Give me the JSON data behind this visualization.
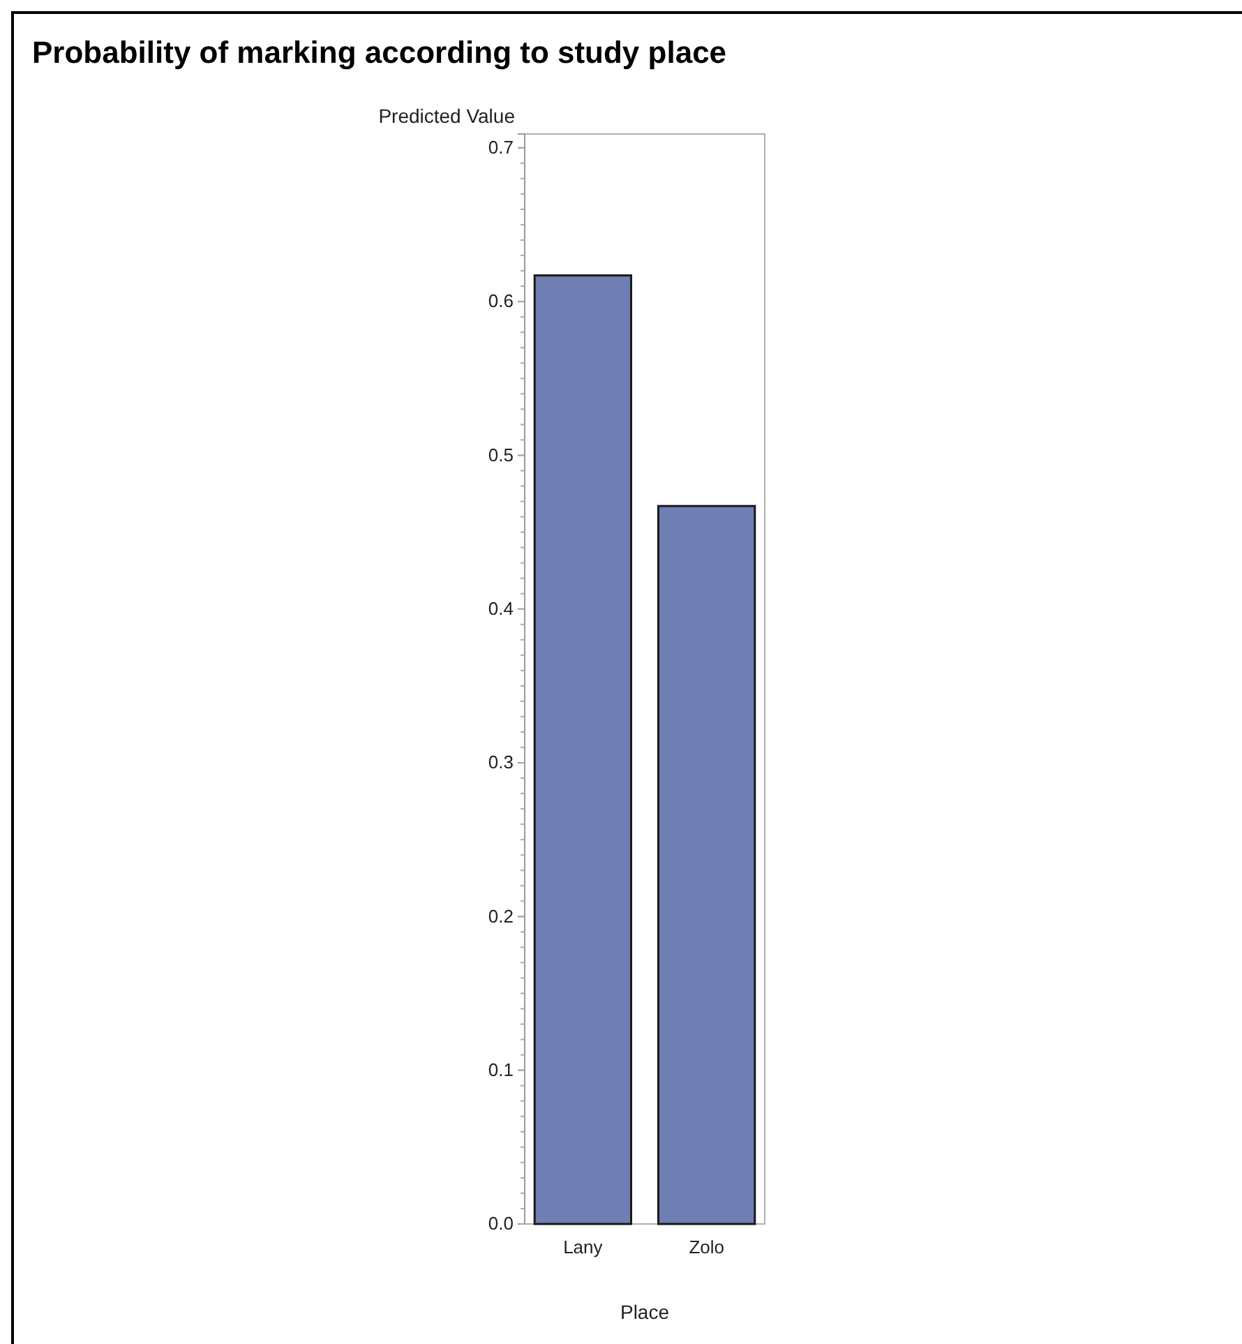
{
  "chart_data": {
    "type": "bar",
    "title": "Probability of marking according to study place",
    "xlabel": "Place",
    "ylabel": "Predicted Value",
    "categories": [
      "Lany",
      "Zolo"
    ],
    "values": [
      0.617,
      0.467
    ],
    "color": "#6f7eb3",
    "ylim": [
      0,
      0.709
    ],
    "yticks": [
      {
        "value": 0,
        "label": "0.0"
      },
      {
        "value": 0.1,
        "label": "0.1"
      },
      {
        "value": 0.2,
        "label": "0.2"
      },
      {
        "value": 0.3,
        "label": "0.3"
      },
      {
        "value": 0.4,
        "label": "0.4"
      },
      {
        "value": 0.5,
        "label": "0.5"
      },
      {
        "value": 0.6,
        "label": "0.6"
      },
      {
        "value": 0.7,
        "label": "0.7"
      }
    ],
    "grid": false
  }
}
